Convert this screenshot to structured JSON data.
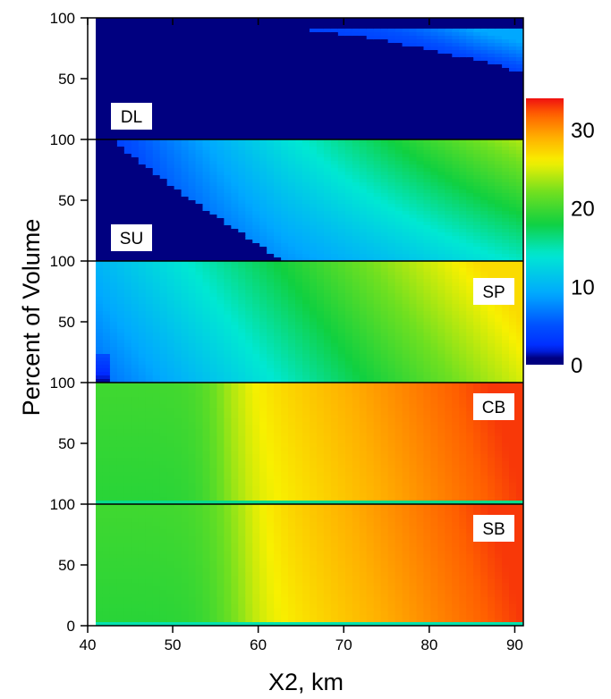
{
  "chart_data": {
    "type": "heatmap",
    "xlabel": "X2, km",
    "ylabel": "Percent of Volume",
    "xlim": [
      41,
      91
    ],
    "xticks": [
      "40",
      "50",
      "60",
      "70",
      "80",
      "90"
    ],
    "yticks": [
      "0",
      "50",
      "100"
    ],
    "ylim": [
      0,
      100
    ],
    "colorbar": {
      "range": [
        0,
        34
      ],
      "ticks": [
        "0",
        "10",
        "20",
        "30"
      ],
      "colors": [
        "#000080",
        "#0050ff",
        "#00a8ff",
        "#00e8d0",
        "#10d040",
        "#70e020",
        "#f8f000",
        "#ffb000",
        "#ff6000",
        "#f01010"
      ]
    },
    "panels": [
      {
        "label": "DL",
        "pattern": "DL: mostly dark navy (0); light blue (about 5-10) only near the surface at large X2",
        "show_zero": false
      },
      {
        "label": "SU",
        "pattern": "SU: values increase from about 0 at low X2 to about 20 near the surface at X2 = 90",
        "show_zero": false
      },
      {
        "label": "SP",
        "pattern": "SP: values increase from about 5 at X2 = 41 to about 25 at X2 = 90",
        "show_zero": false
      },
      {
        "label": "CB",
        "pattern": "CB: about 18-22 at low X2 rising to about 32 at X2 = 90",
        "show_zero": false
      },
      {
        "label": "SB",
        "pattern": "SB: about 18-22 at low X2 rising to about 32 at X2 = 90",
        "show_zero": true
      }
    ]
  }
}
